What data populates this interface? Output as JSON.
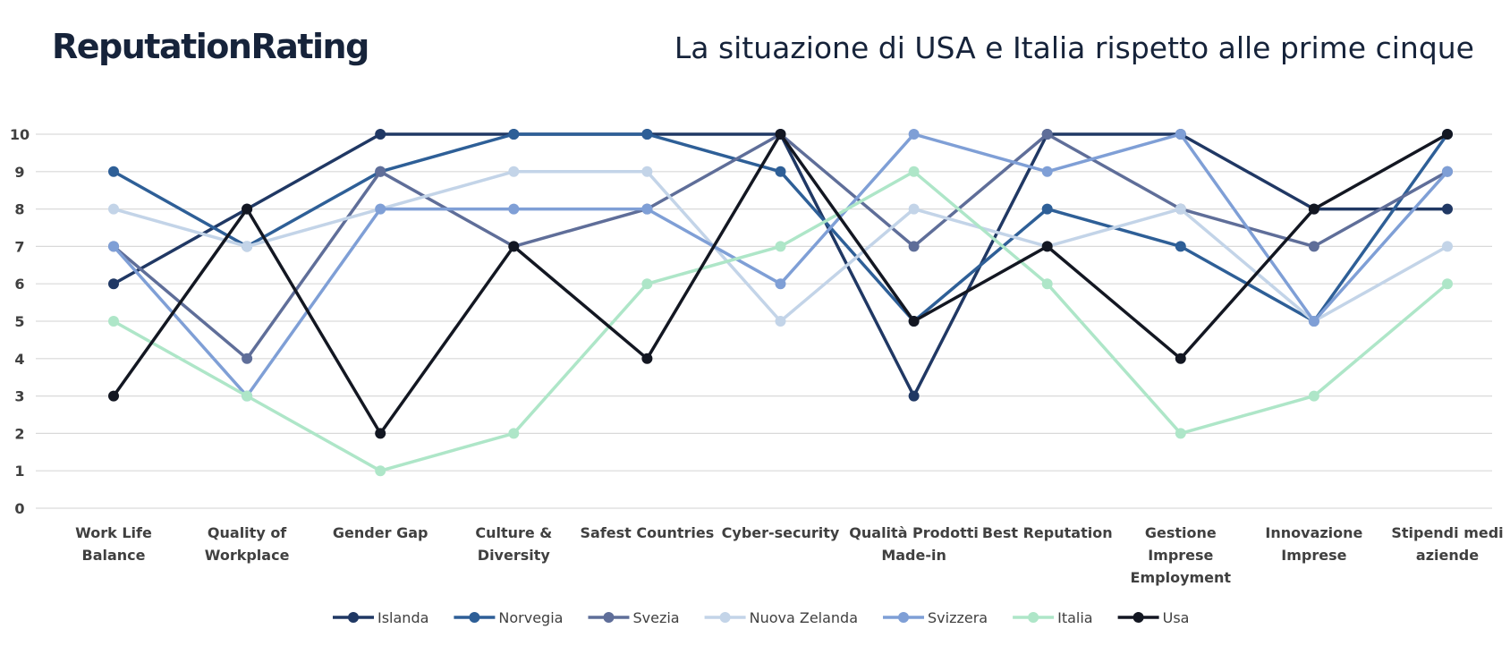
{
  "brand": "ReputationRating",
  "chart_data": {
    "type": "line",
    "title": "La situazione di USA e Italia rispetto alle prime cinque",
    "xlabel": "",
    "ylabel": "",
    "ylim": [
      0,
      10
    ],
    "yticks": [
      0,
      1,
      2,
      3,
      4,
      5,
      6,
      7,
      8,
      9,
      10
    ],
    "grid": true,
    "legend": "bottom",
    "categories": [
      [
        "Work Life",
        "Balance"
      ],
      [
        "Quality of",
        "Workplace"
      ],
      [
        "Gender Gap"
      ],
      [
        "Culture &",
        "Diversity"
      ],
      [
        "Safest Countries"
      ],
      [
        "Cyber-security"
      ],
      [
        "Qualità Prodotti",
        "Made-in"
      ],
      [
        "Best Reputation"
      ],
      [
        "Gestione",
        "Imprese",
        "Employment"
      ],
      [
        "Innovazione",
        "Imprese"
      ],
      [
        "Stipendi medi",
        "aziende"
      ]
    ],
    "series": [
      {
        "name": "Islanda",
        "color": "#203864",
        "values": [
          6,
          8,
          10,
          10,
          10,
          10,
          3,
          10,
          10,
          8,
          8
        ]
      },
      {
        "name": "Norvegia",
        "color": "#2e5f97",
        "values": [
          9,
          7,
          9,
          10,
          10,
          9,
          5,
          8,
          7,
          5,
          10
        ]
      },
      {
        "name": "Svezia",
        "color": "#5f6e99",
        "values": [
          7,
          4,
          9,
          7,
          8,
          10,
          7,
          10,
          8,
          7,
          9
        ]
      },
      {
        "name": "Nuova Zelanda",
        "color": "#c3d4e8",
        "values": [
          8,
          7,
          8,
          9,
          9,
          5,
          8,
          7,
          8,
          5,
          7
        ]
      },
      {
        "name": "Svizzera",
        "color": "#7f9fd6",
        "values": [
          7,
          3,
          8,
          8,
          8,
          6,
          10,
          9,
          10,
          5,
          9
        ]
      },
      {
        "name": "Italia",
        "color": "#aee6c8",
        "values": [
          5,
          3,
          1,
          2,
          6,
          7,
          9,
          6,
          2,
          3,
          6
        ]
      },
      {
        "name": "Usa",
        "color": "#131722",
        "values": [
          3,
          8,
          2,
          7,
          4,
          10,
          5,
          7,
          4,
          8,
          10
        ]
      }
    ]
  }
}
